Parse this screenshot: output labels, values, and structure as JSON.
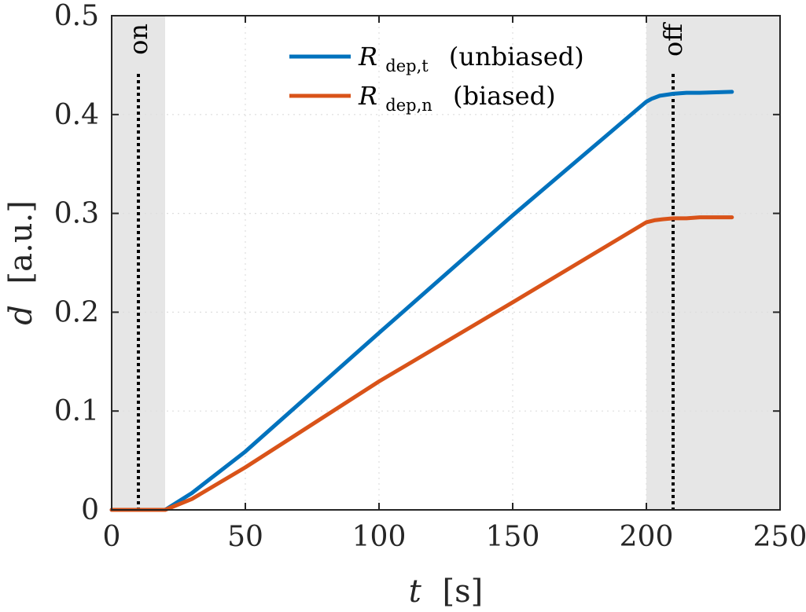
{
  "chart_data": {
    "type": "line",
    "xlim": [
      0,
      250
    ],
    "ylim": [
      0,
      0.5
    ],
    "xticks": [
      0,
      50,
      100,
      150,
      200,
      250
    ],
    "yticks": [
      0,
      0.1,
      0.2,
      0.3,
      0.4,
      0.5
    ],
    "xtick_labels": [
      "0",
      "50",
      "100",
      "150",
      "200",
      "250"
    ],
    "ytick_labels": [
      "0",
      "0.1",
      "0.2",
      "0.3",
      "0.4",
      "0.5"
    ],
    "xlabel": {
      "symbol": "t",
      "unit": "[s]"
    },
    "ylabel": {
      "symbol": "d",
      "unit": "[a.u.]"
    },
    "grid": true,
    "legend_position": "top-center",
    "shaded_regions": [
      {
        "x": [
          0,
          20
        ],
        "color": "#e6e6e6"
      },
      {
        "x": [
          200,
          250
        ],
        "color": "#e6e6e6"
      }
    ],
    "markers": [
      {
        "x": 10,
        "label": "on"
      },
      {
        "x": 210,
        "label": "off"
      }
    ],
    "series": [
      {
        "name": "R_dep,t (unbiased)",
        "symbol": "R",
        "subscript": "dep,t",
        "suffix": "(unbiased)",
        "color": "#0072bd",
        "x": [
          0,
          20,
          30,
          50,
          100,
          150,
          200,
          202,
          205,
          210,
          215,
          220,
          232
        ],
        "y": [
          0,
          0,
          0.017,
          0.059,
          0.179,
          0.298,
          0.413,
          0.416,
          0.419,
          0.421,
          0.422,
          0.422,
          0.423
        ]
      },
      {
        "name": "R_dep,n (biased)",
        "symbol": "R",
        "subscript": "dep,n",
        "suffix": "(biased)",
        "color": "#d95319",
        "x": [
          0,
          20,
          30,
          50,
          100,
          150,
          200,
          203,
          206,
          210,
          215,
          220,
          232
        ],
        "y": [
          0,
          0,
          0.011,
          0.043,
          0.13,
          0.21,
          0.291,
          0.293,
          0.294,
          0.295,
          0.295,
          0.296,
          0.296
        ]
      }
    ]
  }
}
